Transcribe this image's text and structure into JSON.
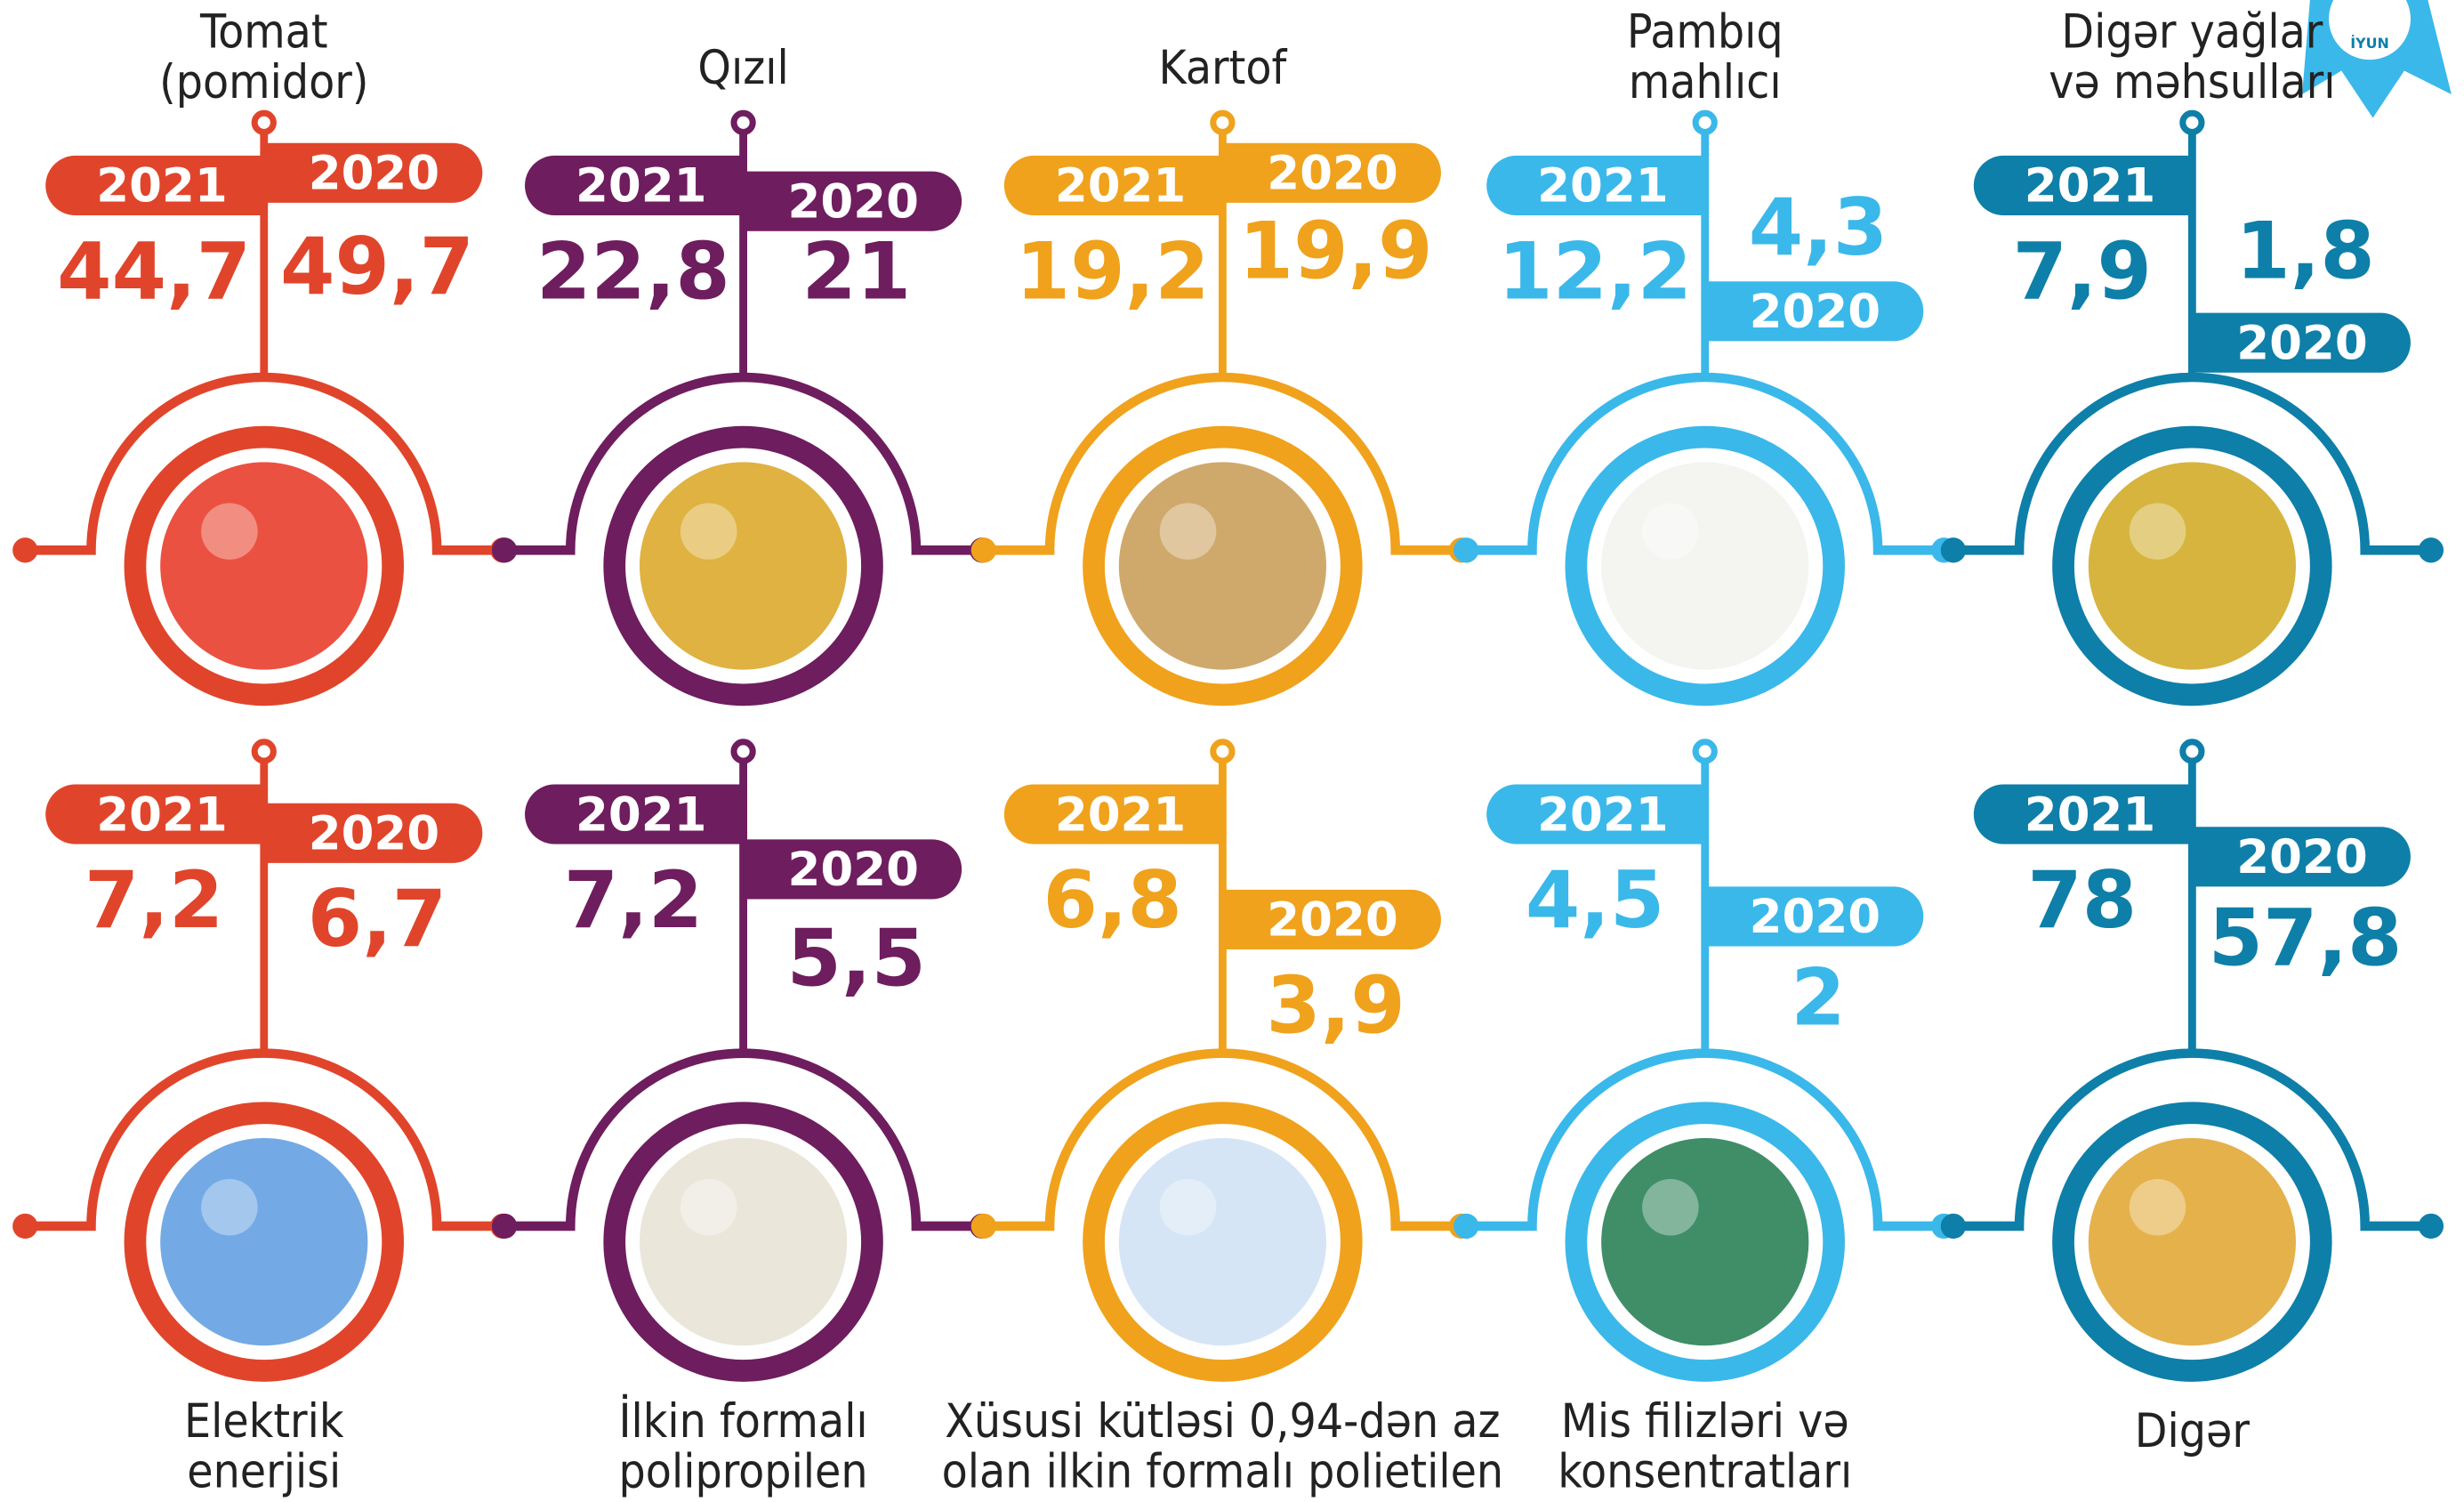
{
  "badge": "İYUN",
  "rows": [
    {
      "items": [
        {
          "label": [
            "Tomat",
            "(pomidor)"
          ],
          "year_a": "2021",
          "value_a": "44,7",
          "year_b": "2020",
          "value_b": "49,7",
          "color": "#e0452b"
        },
        {
          "label": [
            "Qızıl"
          ],
          "year_a": "2021",
          "value_a": "22,8",
          "year_b": "2020",
          "value_b": "21",
          "color": "#6e1d5e"
        },
        {
          "label": [
            "Kartof"
          ],
          "year_a": "2021",
          "value_a": "19,2",
          "year_b": "2020",
          "value_b": "19,9",
          "color": "#f0a21c"
        },
        {
          "label": [
            "Pambıq",
            "mahlıcı"
          ],
          "year_a": "2021",
          "value_a": "12,2",
          "year_b": "2020",
          "value_b": "4,3",
          "color": "#3ab8ea"
        },
        {
          "label": [
            "Digər yağlar",
            "və məhsulları"
          ],
          "year_a": "2021",
          "value_a": "7,9",
          "year_b": "2020",
          "value_b": "1,8",
          "color": "#0e7fa8"
        }
      ]
    },
    {
      "items": [
        {
          "label": [
            "Elektrik",
            "enerjisi"
          ],
          "year_a": "2021",
          "value_a": "7,2",
          "year_b": "2020",
          "value_b": "6,7",
          "color": "#e0452b"
        },
        {
          "label": [
            "İlkin formalı",
            "polipropilen"
          ],
          "year_a": "2021",
          "value_a": "7,2",
          "year_b": "2020",
          "value_b": "5,5",
          "color": "#6e1d5e"
        },
        {
          "label": [
            "Xüsusi kütləsi 0,94-dən az",
            "olan ilkin formalı polietilen"
          ],
          "year_a": "2021",
          "value_a": "6,8",
          "year_b": "2020",
          "value_b": "3,9",
          "color": "#f0a21c"
        },
        {
          "label": [
            "Mis filizləri və",
            "konsentratları"
          ],
          "year_a": "2021",
          "value_a": "4,5",
          "year_b": "2020",
          "value_b": "2",
          "color": "#3ab8ea"
        },
        {
          "label": [
            "Digər"
          ],
          "year_a": "2021",
          "value_a": "78",
          "year_b": "2020",
          "value_b": "57,8",
          "color": "#0e7fa8"
        }
      ]
    }
  ]
}
